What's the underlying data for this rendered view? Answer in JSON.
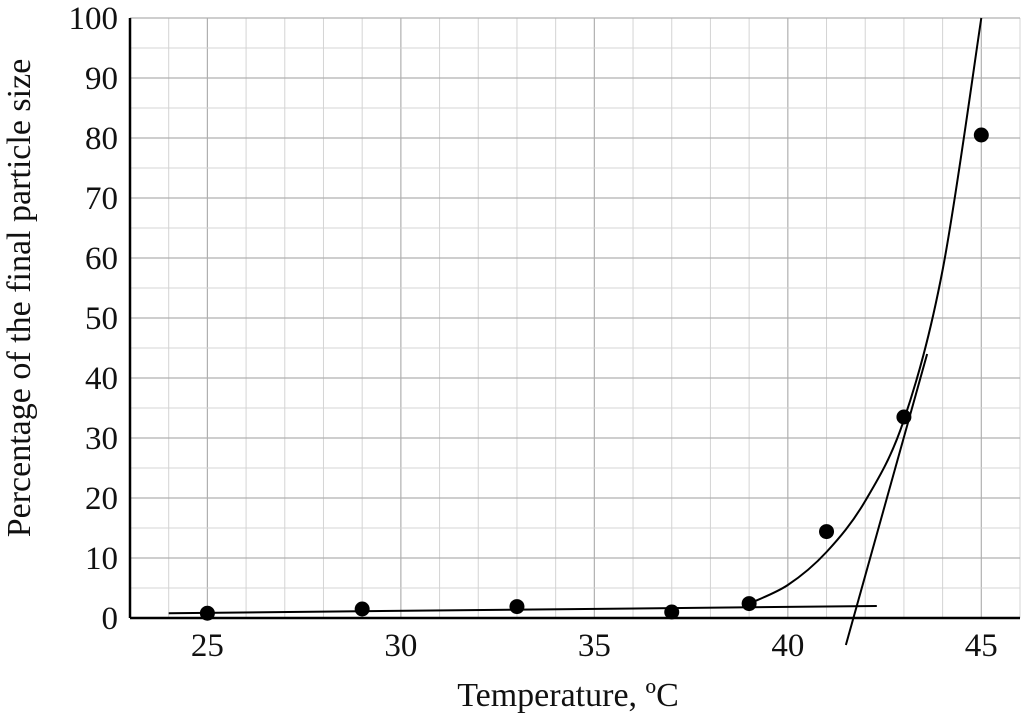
{
  "chart_data": {
    "type": "scatter",
    "xlabel": "Temperature, ºC",
    "ylabel": "Percentage of the final particle size",
    "xlim": [
      23,
      46
    ],
    "ylim": [
      0,
      100
    ],
    "x_ticks": [
      25,
      30,
      35,
      40,
      45
    ],
    "y_ticks": [
      0,
      10,
      20,
      30,
      40,
      50,
      60,
      70,
      80,
      90,
      100
    ],
    "grid": true,
    "series": [
      {
        "x": [
          25,
          29,
          33,
          37,
          39,
          41,
          43,
          45
        ],
        "y": [
          0.8,
          1.5,
          1.9,
          1.0,
          2.4,
          14.4,
          33.5,
          80.5
        ]
      }
    ],
    "fit_lines": [
      {
        "kind": "baseline",
        "x": [
          24,
          42.3
        ],
        "y": [
          0.8,
          2.0
        ]
      },
      {
        "kind": "curve",
        "x": [
          39,
          40,
          41,
          42,
          43,
          44,
          45
        ],
        "y": [
          2.4,
          5.5,
          11.0,
          19.5,
          33.0,
          58.0,
          100
        ]
      },
      {
        "kind": "tangent",
        "x": [
          41.5,
          43.6
        ],
        "y": [
          -4.5,
          44
        ]
      }
    ]
  }
}
